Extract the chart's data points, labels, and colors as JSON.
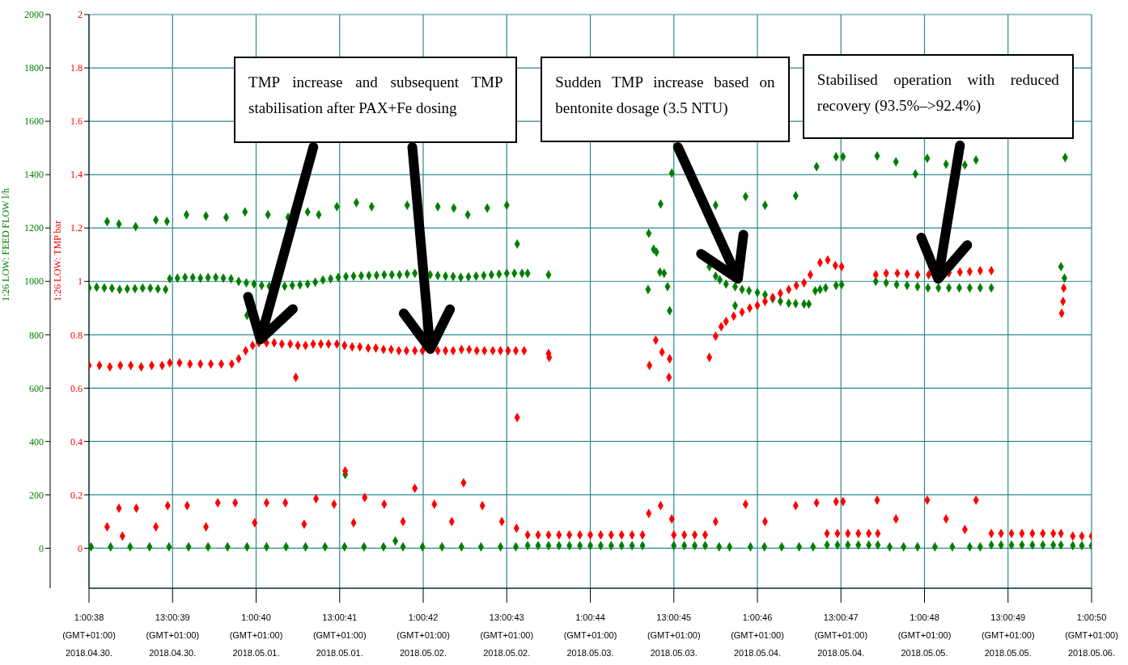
{
  "chart_data": {
    "type": "scatter",
    "marker": "diamond",
    "grid": true,
    "legend": false,
    "ylabel": "1:26 LOW: FEED FLOW l/h",
    "y2label": "1:26 LOW: TMP bar",
    "xlim": [
      "2018-04-30T01:00",
      "2018-05-06T01:00"
    ],
    "xticks": [
      {
        "value": "2018-04-30T01:00",
        "label": "1:00:38\n(GMT+01:00)\n2018.04.30."
      },
      {
        "value": "2018-04-30T13:00",
        "label": "13:00:39\n(GMT+01:00)\n2018.04.30."
      },
      {
        "value": "2018-05-01T01:00",
        "label": "1:00:40\n(GMT+01:00)\n2018.05.01."
      },
      {
        "value": "2018-05-01T13:00",
        "label": "13:00:41\n(GMT+01:00)\n2018.05.01."
      },
      {
        "value": "2018-05-02T01:00",
        "label": "1:00:42\n(GMT+01:00)\n2018.05.02."
      },
      {
        "value": "2018-05-02T13:00",
        "label": "13:00:43\n(GMT+01:00)\n2018.05.02."
      },
      {
        "value": "2018-05-03T01:00",
        "label": "1:00:44\n(GMT+01:00)\n2018.05.03."
      },
      {
        "value": "2018-05-03T13:00",
        "label": "13:00:45\n(GMT+01:00)\n2018.05.03."
      },
      {
        "value": "2018-05-04T01:00",
        "label": "1:00:46\n(GMT+01:00)\n2018.05.04."
      },
      {
        "value": "2018-05-04T13:00",
        "label": "13:00:47\n(GMT+01:00)\n2018.05.04."
      },
      {
        "value": "2018-05-05T01:00",
        "label": "1:00:48\n(GMT+01:00)\n2018.05.05."
      },
      {
        "value": "2018-05-05T13:00",
        "label": "13:00:49\n(GMT+01:00)\n2018.05.05."
      },
      {
        "value": "2018-05-06T01:00",
        "label": "1:00:50\n(GMT+01:00)\n2018.05.06."
      }
    ],
    "ylim": [
      -150,
      2000
    ],
    "yticks": [
      0,
      200,
      400,
      600,
      800,
      1000,
      1200,
      1400,
      1600,
      1800,
      2000
    ],
    "y2lim": [
      -0.15,
      2
    ],
    "y2ticks": [
      0,
      0.2,
      0.4,
      0.6,
      0.8,
      1,
      1.2,
      1.4,
      1.6,
      1.8,
      2
    ],
    "annotations": [
      "TMP increase and subsequent TMP stabilisation after PAX+Fe dosing",
      "Sudden TMP increase based on bentonite dosage (3.5 NTU)",
      "Stabilised operation with reduced recovery (93.5%–>92.4%)"
    ],
    "series": [
      {
        "color": "#007f00",
        "x": [
          "2018-04-30T01:00",
          "2018-04-30T02:06",
          "2018-04-30T03:12",
          "2018-04-30T04:18",
          "2018-04-30T05:24",
          "2018-04-30T06:30",
          "2018-04-30T07:36",
          "2018-04-30T08:42",
          "2018-04-30T09:48",
          "2018-04-30T10:54",
          "2018-04-30T12:00",
          "2018-04-30T12:36",
          "2018-04-30T13:42",
          "2018-04-30T14:48",
          "2018-04-30T15:54",
          "2018-04-30T17:00",
          "2018-04-30T18:06",
          "2018-04-30T19:12",
          "2018-04-30T20:18",
          "2018-04-30T21:24",
          "2018-04-30T22:30",
          "2018-04-30T23:36",
          "2018-05-01T00:42",
          "2018-05-01T01:48",
          "2018-05-01T02:54",
          "2018-05-01T04:00",
          "2018-05-01T05:06",
          "2018-05-01T06:12",
          "2018-05-01T07:18",
          "2018-05-01T08:24",
          "2018-05-01T09:30",
          "2018-05-01T10:36",
          "2018-05-01T11:42",
          "2018-05-01T12:48",
          "2018-05-01T13:54",
          "2018-05-01T15:00",
          "2018-05-01T16:06",
          "2018-05-01T17:12",
          "2018-05-01T18:18",
          "2018-05-01T19:24",
          "2018-05-01T20:30",
          "2018-05-01T21:36",
          "2018-05-01T22:42",
          "2018-05-01T23:48",
          "2018-05-02T00:54",
          "2018-05-02T02:00",
          "2018-05-02T03:06",
          "2018-05-02T04:12",
          "2018-05-02T05:18",
          "2018-05-02T06:24",
          "2018-05-02T07:30",
          "2018-05-02T08:36",
          "2018-05-02T09:42",
          "2018-05-02T10:48",
          "2018-05-02T11:54",
          "2018-05-02T13:00",
          "2018-05-02T14:06",
          "2018-05-02T15:12",
          "2018-05-02T16:00",
          "2018-04-30T03:36",
          "2018-04-30T05:18",
          "2018-04-30T07:42",
          "2018-04-30T10:36",
          "2018-04-30T12:12",
          "2018-04-30T15:00",
          "2018-04-30T17:48",
          "2018-04-30T20:42",
          "2018-04-30T23:24",
          "2018-05-01T02:42",
          "2018-05-01T05:36",
          "2018-05-01T08:24",
          "2018-05-01T10:00",
          "2018-05-01T12:36",
          "2018-05-01T15:24",
          "2018-05-01T17:36",
          "2018-05-01T22:42",
          "2018-05-02T03:06",
          "2018-05-02T05:24",
          "2018-05-02T07:24",
          "2018-05-02T10:12",
          "2018-05-02T13:00",
          "2018-05-02T14:30",
          "2018-05-02T19:00",
          "2018-04-30T23:42",
          "2018-05-01T13:48",
          "2018-05-01T21:00",
          "2018-04-30T01:18",
          "2018-04-30T04:06",
          "2018-04-30T06:54",
          "2018-04-30T09:42",
          "2018-04-30T12:30",
          "2018-04-30T15:18",
          "2018-04-30T18:06",
          "2018-04-30T20:54",
          "2018-04-30T23:42",
          "2018-05-01T02:30",
          "2018-05-01T05:18",
          "2018-05-01T08:06",
          "2018-05-01T10:54",
          "2018-05-01T13:42",
          "2018-05-01T16:30",
          "2018-05-01T19:18",
          "2018-05-01T22:06",
          "2018-05-02T00:54",
          "2018-05-02T03:42",
          "2018-05-02T06:30",
          "2018-05-02T09:18",
          "2018-05-02T12:06",
          "2018-05-02T14:18",
          "2018-05-02T16:00",
          "2018-05-02T17:30",
          "2018-05-02T19:00",
          "2018-05-02T20:30",
          "2018-05-02T22:00",
          "2018-05-02T23:30",
          "2018-05-03T01:00",
          "2018-05-03T02:30",
          "2018-05-03T04:00",
          "2018-05-03T05:30",
          "2018-05-03T07:00",
          "2018-05-03T08:30",
          "2018-05-03T13:00",
          "2018-05-03T14:30",
          "2018-05-03T16:00",
          "2018-05-03T17:30",
          "2018-05-04T11:00",
          "2018-05-04T12:30",
          "2018-05-04T14:00",
          "2018-05-04T15:30",
          "2018-05-04T17:00",
          "2018-05-04T18:18",
          "2018-05-05T10:36",
          "2018-05-05T12:00",
          "2018-05-05T13:30",
          "2018-05-05T15:00",
          "2018-05-05T16:30",
          "2018-05-05T18:00",
          "2018-05-05T19:30",
          "2018-05-05T20:36",
          "2018-05-05T22:18",
          "2018-05-05T23:36",
          "2018-05-06T01:00",
          "2018-05-03T19:30",
          "2018-05-03T21:00",
          "2018-05-04T00:00",
          "2018-05-04T02:00",
          "2018-05-04T04:30",
          "2018-05-04T07:00",
          "2018-05-04T09:00",
          "2018-05-04T20:00",
          "2018-05-04T22:00",
          "2018-05-05T00:00",
          "2018-05-05T02:30",
          "2018-05-05T05:00",
          "2018-05-05T07:30",
          "2018-05-05T09:00",
          "2018-05-03T09:24",
          "2018-05-03T09:18",
          "2018-05-03T10:06",
          "2018-05-03T10:30",
          "2018-05-03T11:00",
          "2018-05-03T11:36",
          "2018-05-03T12:06",
          "2018-05-03T12:24",
          "2018-05-03T11:06",
          "2018-05-03T12:42",
          "2018-05-03T18:06",
          "2018-05-03T19:00",
          "2018-05-03T19:36",
          "2018-05-03T20:30",
          "2018-05-03T21:48",
          "2018-05-03T22:48",
          "2018-05-03T23:48",
          "2018-05-04T01:00",
          "2018-05-04T02:06",
          "2018-05-04T03:12",
          "2018-05-04T04:18",
          "2018-05-04T05:30",
          "2018-05-04T06:30",
          "2018-05-04T07:42",
          "2018-05-04T08:24",
          "2018-05-04T09:18",
          "2018-05-04T10:00",
          "2018-05-04T10:48",
          "2018-05-04T12:18",
          "2018-05-04T13:06",
          "2018-05-03T21:48",
          "2018-05-03T19:00",
          "2018-05-03T23:18",
          "2018-05-04T02:06",
          "2018-05-04T06:30",
          "2018-05-04T09:30",
          "2018-05-04T12:18",
          "2018-05-04T13:18",
          "2018-05-04T18:12",
          "2018-05-04T20:54",
          "2018-05-04T23:42",
          "2018-05-05T01:24",
          "2018-05-05T04:06",
          "2018-05-05T06:48",
          "2018-05-05T08:24",
          "2018-05-05T21:12",
          "2018-05-04T18:00",
          "2018-05-04T19:30",
          "2018-05-04T21:00",
          "2018-05-04T22:30",
          "2018-05-05T00:00",
          "2018-05-05T01:30",
          "2018-05-05T03:00",
          "2018-05-05T04:30",
          "2018-05-05T06:00",
          "2018-05-05T07:30",
          "2018-05-05T09:00",
          "2018-05-05T10:36",
          "2018-05-05T20:36",
          "2018-05-05T21:06"
        ],
        "values": [
          976,
          978,
          976,
          974,
          970,
          972,
          973,
          975,
          975,
          972,
          970,
          1010,
          1012,
          1015,
          1014,
          1012,
          1014,
          1015,
          1012,
          1010,
          1000,
          995,
          990,
          985,
          982,
          null,
          982,
          985,
          987,
          990,
          997,
          1005,
          1010,
          1015,
          1018,
          1020,
          1021,
          1022,
          1023,
          1025,
          1025,
          1025,
          1028,
          1030,
          null,
          1025,
          1022,
          1020,
          1018,
          1015,
          1017,
          1020,
          1022,
          1025,
          1027,
          1030,
          1030,
          1030,
          1030,
          1224,
          1215,
          1205,
          1230,
          1225,
          1250,
          1245,
          1240,
          1260,
          1250,
          1240,
          1260,
          1250,
          1280,
          1295,
          1280,
          1285,
          1280,
          1275,
          1250,
          1275,
          1285,
          1140,
          1025,
          873,
          276,
          27,
          5,
          5,
          5,
          5,
          5,
          5,
          5,
          5,
          5,
          5,
          5,
          5,
          5,
          5,
          5,
          5,
          5,
          5,
          5,
          5,
          5,
          5,
          5,
          10,
          10,
          10,
          10,
          10,
          10,
          10,
          10,
          10,
          10,
          10,
          10,
          10,
          10,
          10,
          10,
          12,
          12,
          12,
          12,
          12,
          12,
          12,
          12,
          12,
          12,
          12,
          12,
          12,
          12,
          10,
          10,
          10,
          5,
          5,
          5,
          5,
          5,
          5,
          5,
          5,
          5,
          5,
          5,
          5,
          5,
          5,
          1180,
          970,
          1120,
          1110,
          1035,
          1030,
          980,
          890,
          1290,
          1406,
          1055,
          1020,
          1006,
          990,
          980,
          970,
          965,
          958,
          950,
          935,
          925,
          918,
          917,
          915,
          915,
          964,
          970,
          976,
          985,
          988,
          909,
          1285,
          1318,
          1285,
          1321,
          1430,
          1467,
          1467,
          1470,
          1448,
          1403,
          1461,
          1439,
          1436,
          1455,
          1464,
          1000,
          995,
          988,
          985,
          980,
          976,
          976,
          976,
          976,
          976,
          976,
          976,
          1055,
          1012
        ]
      },
      {
        "color": "#ff0000",
        "axis": "y2",
        "x": [
          "2018-04-30T01:00",
          "2018-04-30T02:30",
          "2018-04-30T04:00",
          "2018-04-30T05:30",
          "2018-04-30T07:00",
          "2018-04-30T08:30",
          "2018-04-30T10:00",
          "2018-04-30T11:30",
          "2018-04-30T12:36",
          "2018-04-30T14:00",
          "2018-04-30T15:30",
          "2018-04-30T17:00",
          "2018-04-30T18:30",
          "2018-04-30T20:00",
          "2018-04-30T21:30",
          "2018-04-30T22:30",
          "2018-04-30T23:30",
          "2018-05-01T00:30",
          "2018-05-01T01:24",
          "2018-05-01T02:30",
          "2018-05-01T03:36",
          "2018-05-01T04:42",
          "2018-05-01T05:54",
          "2018-05-01T07:00",
          "2018-05-01T08:06",
          "2018-05-01T09:12",
          "2018-05-01T10:18",
          "2018-05-01T11:24",
          "2018-05-01T12:36",
          "2018-05-01T13:42",
          "2018-05-01T14:48",
          "2018-05-01T15:54",
          "2018-05-01T17:06",
          "2018-05-01T18:12",
          "2018-05-01T19:18",
          "2018-05-01T20:24",
          "2018-05-01T21:30",
          "2018-05-01T22:36",
          "2018-05-01T23:48",
          "2018-05-02T00:54",
          "2018-05-02T02:00",
          "2018-05-02T03:06",
          "2018-05-02T04:12",
          "2018-05-02T05:18",
          "2018-05-02T06:30",
          "2018-05-02T07:36",
          "2018-05-02T08:42",
          "2018-05-02T09:48",
          "2018-05-02T11:00",
          "2018-05-02T12:06",
          "2018-05-02T13:12",
          "2018-05-02T14:18",
          "2018-05-02T15:30",
          "2018-05-01T06:42",
          "2018-05-02T14:30",
          "2018-05-02T19:00",
          "2018-05-02T19:06",
          "2018-04-30T05:18",
          "2018-04-30T07:48",
          "2018-04-30T03:36",
          "2018-04-30T05:48",
          "2018-04-30T10:36",
          "2018-04-30T12:18",
          "2018-04-30T15:06",
          "2018-04-30T17:48",
          "2018-04-30T19:30",
          "2018-04-30T22:00",
          "2018-05-01T00:48",
          "2018-05-01T02:30",
          "2018-05-01T05:12",
          "2018-05-01T07:54",
          "2018-05-01T09:36",
          "2018-05-01T12:12",
          "2018-05-01T13:48",
          "2018-05-01T15:00",
          "2018-05-01T16:36",
          "2018-05-01T19:24",
          "2018-05-01T22:06",
          "2018-05-01T23:48",
          "2018-05-02T02:36",
          "2018-05-02T05:06",
          "2018-05-02T06:48",
          "2018-05-02T09:30",
          "2018-05-02T12:18",
          "2018-05-02T14:24",
          "2018-05-02T16:00",
          "2018-05-02T17:30",
          "2018-05-02T19:00",
          "2018-05-02T20:30",
          "2018-05-02T22:00",
          "2018-05-02T23:30",
          "2018-05-03T01:00",
          "2018-05-03T02:30",
          "2018-05-03T04:00",
          "2018-05-03T05:30",
          "2018-05-03T07:00",
          "2018-05-03T08:30",
          "2018-05-03T13:00",
          "2018-05-03T14:30",
          "2018-05-03T16:00",
          "2018-05-03T17:30",
          "2018-05-04T11:00",
          "2018-05-04T12:30",
          "2018-05-04T14:00",
          "2018-05-04T15:30",
          "2018-05-04T17:00",
          "2018-05-04T18:18",
          "2018-05-05T10:36",
          "2018-05-05T12:00",
          "2018-05-05T13:30",
          "2018-05-05T15:00",
          "2018-05-05T16:30",
          "2018-05-05T18:00",
          "2018-05-05T19:30",
          "2018-05-05T20:36",
          "2018-05-05T22:18",
          "2018-05-05T23:36",
          "2018-05-06T01:00",
          "2018-05-03T09:24",
          "2018-05-03T11:06",
          "2018-05-03T12:42",
          "2018-05-03T19:00",
          "2018-05-03T23:18",
          "2018-05-04T02:06",
          "2018-05-04T06:30",
          "2018-05-04T09:30",
          "2018-05-04T12:18",
          "2018-05-04T13:18",
          "2018-05-04T18:12",
          "2018-05-04T20:54",
          "2018-05-05T01:24",
          "2018-05-05T04:06",
          "2018-05-05T06:48",
          "2018-05-05T08:24",
          "2018-05-03T09:30",
          "2018-05-03T10:24",
          "2018-05-03T11:18",
          "2018-05-03T12:24",
          "2018-05-03T12:18",
          "2018-05-03T18:06",
          "2018-05-03T19:00",
          "2018-05-03T19:48",
          "2018-05-03T20:30",
          "2018-05-03T21:36",
          "2018-05-03T22:48",
          "2018-05-03T23:54",
          "2018-05-04T01:00",
          "2018-05-04T02:06",
          "2018-05-04T03:12",
          "2018-05-04T04:18",
          "2018-05-04T05:30",
          "2018-05-04T06:36",
          "2018-05-04T07:42",
          "2018-05-04T08:36",
          "2018-05-04T10:00",
          "2018-05-04T11:06",
          "2018-05-04T13:06",
          "2018-05-04T12:12",
          "2018-05-04T18:00",
          "2018-05-04T19:30",
          "2018-05-04T21:06",
          "2018-05-04T22:30",
          "2018-05-05T00:00",
          "2018-05-05T01:36",
          "2018-05-05T03:00",
          "2018-05-05T04:30",
          "2018-05-05T06:06",
          "2018-05-05T07:30",
          "2018-05-05T09:00",
          "2018-05-05T10:36",
          "2018-05-05T21:00",
          "2018-05-05T20:54",
          "2018-05-05T20:42"
        ],
        "values": [
          0.685,
          0.685,
          0.68,
          0.685,
          0.685,
          0.68,
          0.685,
          0.685,
          0.695,
          0.695,
          0.69,
          0.69,
          0.69,
          0.69,
          0.69,
          0.71,
          0.74,
          0.76,
          0.77,
          0.77,
          0.77,
          0.765,
          0.765,
          0.76,
          0.76,
          0.765,
          0.765,
          0.765,
          0.765,
          0.76,
          0.755,
          0.755,
          0.75,
          0.75,
          0.745,
          0.745,
          0.74,
          0.74,
          0.74,
          0.74,
          null,
          0.74,
          0.74,
          0.74,
          0.745,
          0.745,
          0.74,
          0.74,
          0.74,
          0.74,
          0.74,
          0.74,
          0.74,
          0.64,
          0.49,
          0.73,
          0.715,
          0.15,
          0.15,
          0.08,
          0.045,
          0.08,
          0.16,
          0.16,
          0.08,
          0.17,
          0.17,
          0.095,
          0.17,
          0.17,
          0.09,
          0.185,
          0.165,
          0.29,
          0.095,
          0.19,
          0.165,
          0.1,
          0.225,
          0.165,
          0.1,
          0.245,
          0.16,
          0.1,
          0.075,
          0.05,
          0.05,
          0.05,
          0.05,
          0.05,
          0.05,
          0.05,
          0.05,
          0.05,
          0.05,
          0.05,
          0.05,
          0.05,
          0.05,
          0.05,
          0.05,
          0.055,
          0.055,
          0.055,
          0.055,
          0.055,
          0.055,
          0.055,
          0.055,
          0.055,
          0.055,
          0.055,
          0.055,
          0.055,
          0.055,
          0.045,
          0.045,
          0.045,
          0.13,
          0.16,
          0.11,
          0.1,
          0.165,
          0.1,
          0.16,
          0.17,
          0.175,
          0.175,
          0.18,
          0.11,
          0.18,
          0.11,
          0.07,
          0.18,
          0.685,
          0.78,
          0.735,
          0.71,
          0.64,
          0.715,
          0.795,
          0.83,
          0.85,
          0.87,
          0.885,
          0.9,
          0.91,
          0.925,
          0.94,
          0.955,
          0.97,
          0.985,
          0.995,
          1.025,
          1.07,
          1.08,
          1.055,
          1.06,
          1.025,
          1.03,
          1.03,
          1.028,
          1.025,
          1.025,
          null,
          1.032,
          1.035,
          1.037,
          1.04,
          1.04,
          0.975,
          0.925,
          0.88
        ]
      }
    ]
  }
}
